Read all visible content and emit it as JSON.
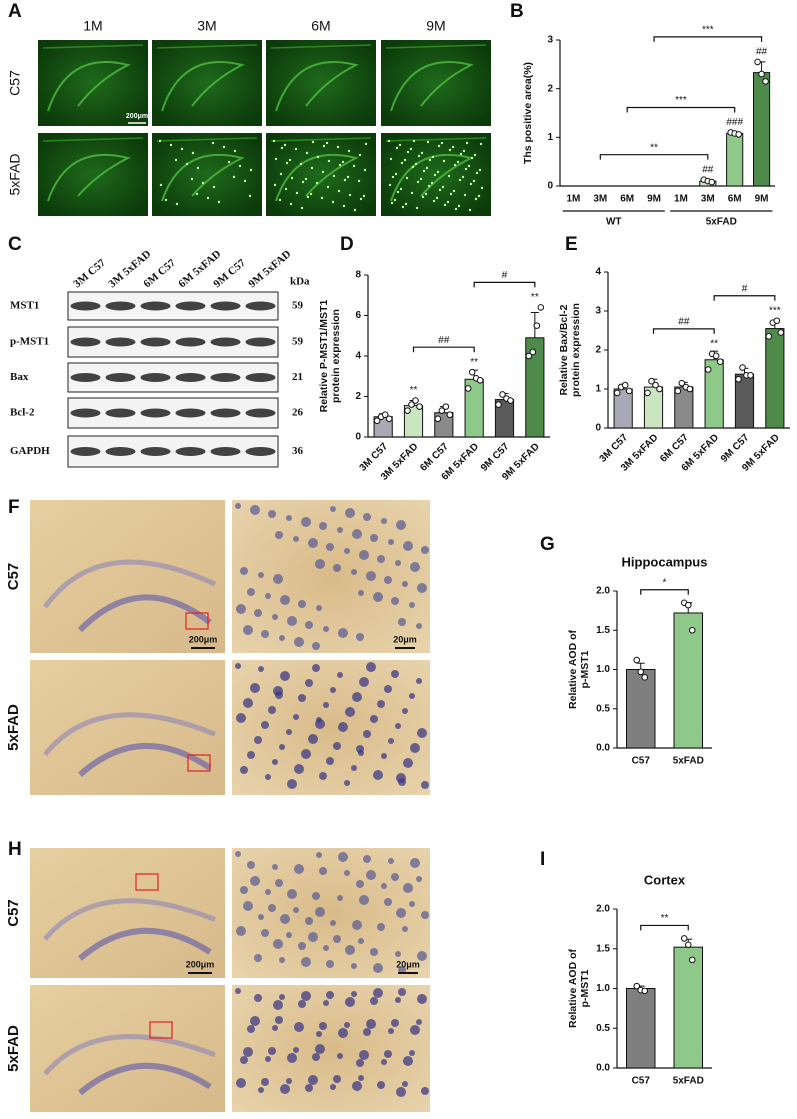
{
  "panel_labels": [
    "A",
    "B",
    "C",
    "D",
    "E",
    "F",
    "G",
    "H",
    "I"
  ],
  "panel_a": {
    "columns": [
      "1M",
      "3M",
      "6M",
      "9M"
    ],
    "rows": [
      "C57",
      "5xFAD"
    ],
    "scale_bar": "200μm"
  },
  "panel_c": {
    "lanes": [
      "3M C57",
      "3M 5xFAD",
      "6M C57",
      "6M 5xFAD",
      "9M C57",
      "9M 5xFAD"
    ],
    "unit": "kDa",
    "proteins": [
      "MST1",
      "p-MST1",
      "Bax",
      "Bcl-2",
      "GAPDH"
    ],
    "sizes": [
      59,
      59,
      21,
      26,
      36
    ]
  },
  "panel_f": {
    "rows": [
      "C57",
      "5xFAD"
    ],
    "scale_bars": [
      "200μm",
      "20μm"
    ]
  },
  "panel_h": {
    "rows": [
      "C57",
      "5xFAD"
    ],
    "scale_bars": [
      "200μm",
      "20μm"
    ]
  },
  "chart_data": [
    {
      "type": "bar",
      "y_label": [
        "Ths positive area(%)"
      ],
      "categories": [
        "1M",
        "3M",
        "6M",
        "9M",
        "1M",
        "3M",
        "6M",
        "9M"
      ],
      "groups": [
        {
          "label": "WT",
          "from": 0,
          "to": 3
        },
        {
          "label": "5xFAD",
          "from": 4,
          "to": 7
        }
      ],
      "values": [
        0,
        0,
        0,
        0,
        0,
        0.1,
        1.08,
        2.33
      ],
      "errors": [
        null,
        null,
        null,
        null,
        null,
        0.03,
        0.03,
        0.22
      ],
      "points": [
        [],
        [],
        [],
        [],
        [],
        [
          0.13,
          0.1,
          0.08
        ],
        [
          1.1,
          1.08,
          1.06
        ],
        [
          2.55,
          2.3,
          2.15
        ]
      ],
      "colors": [
        "#ffffff",
        "#ffffff",
        "#ffffff",
        "#ffffff",
        "#e2f0dc",
        "#c9e6c0",
        "#8fc98a",
        "#4e8a4a"
      ],
      "annotations": [
        null,
        null,
        null,
        null,
        null,
        "##",
        "###",
        "##"
      ],
      "brackets": [
        {
          "from": 1,
          "to": 5,
          "label": "**"
        },
        {
          "from": 2,
          "to": 6,
          "label": "***"
        },
        {
          "from": 3,
          "to": 7,
          "label": "***"
        }
      ],
      "ylim": [
        0,
        3
      ],
      "yticks": [
        0,
        1,
        2,
        3
      ]
    },
    {
      "type": "bar",
      "y_label": [
        "Relative P-MST1/MST1",
        "protein expression"
      ],
      "categories": [
        "3M C57",
        "3M 5xFAD",
        "6M C57",
        "6M 5xFAD",
        "9M C57",
        "9M 5xFAD"
      ],
      "values": [
        1.0,
        1.55,
        1.2,
        2.85,
        1.85,
        4.9
      ],
      "errors": [
        0.15,
        0.25,
        0.3,
        0.45,
        0.3,
        1.25
      ],
      "points": [
        [
          0.8,
          1.0,
          1.1,
          0.9
        ],
        [
          1.3,
          1.6,
          1.8,
          1.5
        ],
        [
          0.9,
          1.3,
          1.5,
          1.1
        ],
        [
          2.4,
          3.2,
          2.9,
          2.8
        ],
        [
          1.6,
          2.1,
          1.9,
          1.8
        ],
        [
          4.0,
          4.2,
          5.5,
          6.4
        ]
      ],
      "colors": [
        "#a9a9b5",
        "#c9e6c0",
        "#8a8a8a",
        "#8fc98a",
        "#5a5a5a",
        "#4e8a4a"
      ],
      "annotations": [
        null,
        "**",
        null,
        "**",
        null,
        "**"
      ],
      "brackets": [
        {
          "from": 1,
          "to": 3,
          "label": "##"
        },
        {
          "from": 3,
          "to": 5,
          "label": "#"
        }
      ],
      "ylim": [
        0,
        8
      ],
      "yticks": [
        0,
        2,
        4,
        6,
        8
      ]
    },
    {
      "type": "bar",
      "y_label": [
        "Relative Bax/Bcl-2",
        "protein expression"
      ],
      "categories": [
        "3M C57",
        "3M 5xFAD",
        "6M C57",
        "6M 5xFAD",
        "9M C57",
        "9M 5xFAD"
      ],
      "values": [
        1.0,
        1.05,
        1.05,
        1.75,
        1.38,
        2.55
      ],
      "errors": [
        0.12,
        0.2,
        0.12,
        0.22,
        0.15,
        0.2
      ],
      "points": [
        [
          0.9,
          1.05,
          1.1,
          0.95
        ],
        [
          0.9,
          1.2,
          1.1,
          1.0
        ],
        [
          0.95,
          1.15,
          1.05,
          1.0
        ],
        [
          1.5,
          1.9,
          1.85,
          1.7
        ],
        [
          1.25,
          1.55,
          1.35,
          1.35
        ],
        [
          2.35,
          2.7,
          2.75,
          2.45
        ]
      ],
      "colors": [
        "#a9a9b5",
        "#c9e6c0",
        "#8a8a8a",
        "#8fc98a",
        "#5a5a5a",
        "#4e8a4a"
      ],
      "annotations": [
        null,
        null,
        null,
        "**",
        null,
        "***"
      ],
      "brackets": [
        {
          "from": 1,
          "to": 3,
          "label": "##"
        },
        {
          "from": 3,
          "to": 5,
          "label": "#"
        }
      ],
      "ylim": [
        0,
        4
      ],
      "yticks": [
        0,
        1,
        2,
        3,
        4
      ]
    },
    {
      "type": "bar",
      "title": "Hippocampus",
      "y_label": [
        "Relative AOD of",
        "p-MST1"
      ],
      "categories": [
        "C57",
        "5xFAD"
      ],
      "values": [
        1.0,
        1.72
      ],
      "errors": [
        0.08,
        0.13
      ],
      "points": [
        [
          1.12,
          0.97,
          0.9
        ],
        [
          1.85,
          1.82,
          1.5
        ]
      ],
      "colors": [
        "#7f7f7f",
        "#8fc98a"
      ],
      "annotations": [
        null,
        null
      ],
      "brackets": [
        {
          "from": 0,
          "to": 1,
          "label": "*"
        }
      ],
      "ylim": [
        0,
        2.0
      ],
      "yticks": [
        {
          "value": 0,
          "label": "0.0"
        },
        {
          "value": 0.5,
          "label": "0.5"
        },
        {
          "value": 1.0,
          "label": "1.0"
        },
        {
          "value": 1.5,
          "label": "1.5"
        },
        {
          "value": 2.0,
          "label": "2.0"
        }
      ]
    },
    {
      "type": "bar",
      "title": "Cortex",
      "y_label": [
        "Relative AOD of",
        "p-MST1"
      ],
      "categories": [
        "C57",
        "5xFAD"
      ],
      "values": [
        1.0,
        1.52
      ],
      "errors": [
        0.03,
        0.1
      ],
      "points": [
        [
          1.03,
          0.98,
          0.97
        ],
        [
          1.63,
          1.55,
          1.36
        ]
      ],
      "colors": [
        "#7f7f7f",
        "#8fc98a"
      ],
      "annotations": [
        null,
        null
      ],
      "brackets": [
        {
          "from": 0,
          "to": 1,
          "label": "**"
        }
      ],
      "ylim": [
        0,
        2.0
      ],
      "yticks": [
        {
          "value": 0,
          "label": "0.0"
        },
        {
          "value": 0.5,
          "label": "0.5"
        },
        {
          "value": 1.0,
          "label": "1.0"
        },
        {
          "value": 1.5,
          "label": "1.5"
        },
        {
          "value": 2.0,
          "label": "2.0"
        }
      ]
    }
  ]
}
